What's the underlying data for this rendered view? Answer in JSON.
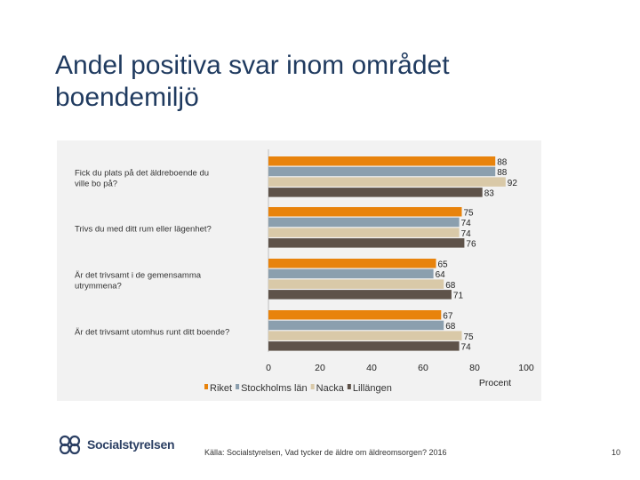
{
  "slide": {
    "title_line1": "Andel positiva svar inom området",
    "title_line2": "boendemiljö",
    "source": "Källa: Socialstyrelsen, Vad tycker de äldre om äldreomsorgen? 2016",
    "page_number": "10",
    "logo_text": "Socialstyrelsen"
  },
  "chart_data": {
    "type": "bar",
    "orientation": "horizontal",
    "categories": [
      [
        "Fick du plats på det äldreboende du",
        "ville bo på?"
      ],
      [
        "Trivs du med ditt rum eller lägenhet?"
      ],
      [
        "Är det trivsamt i de gemensamma",
        "utrymmena?"
      ],
      [
        "Är det trivsamt utomhus runt ditt boende?"
      ]
    ],
    "series": [
      {
        "name": "Riket",
        "color": "#e8830c",
        "values": [
          88,
          75,
          65,
          67
        ]
      },
      {
        "name": "Stockholms län",
        "color": "#8b9fae",
        "values": [
          88,
          74,
          64,
          68
        ]
      },
      {
        "name": "Nacka",
        "color": "#d9c9a8",
        "values": [
          92,
          74,
          68,
          75
        ]
      },
      {
        "name": "Lillängen",
        "color": "#5e5249",
        "values": [
          83,
          76,
          71,
          74
        ]
      }
    ],
    "xlim": [
      0,
      100
    ],
    "xticks": [
      0,
      20,
      40,
      60,
      80,
      100
    ],
    "xlabel": "Procent",
    "legend_position": "bottom-left"
  }
}
